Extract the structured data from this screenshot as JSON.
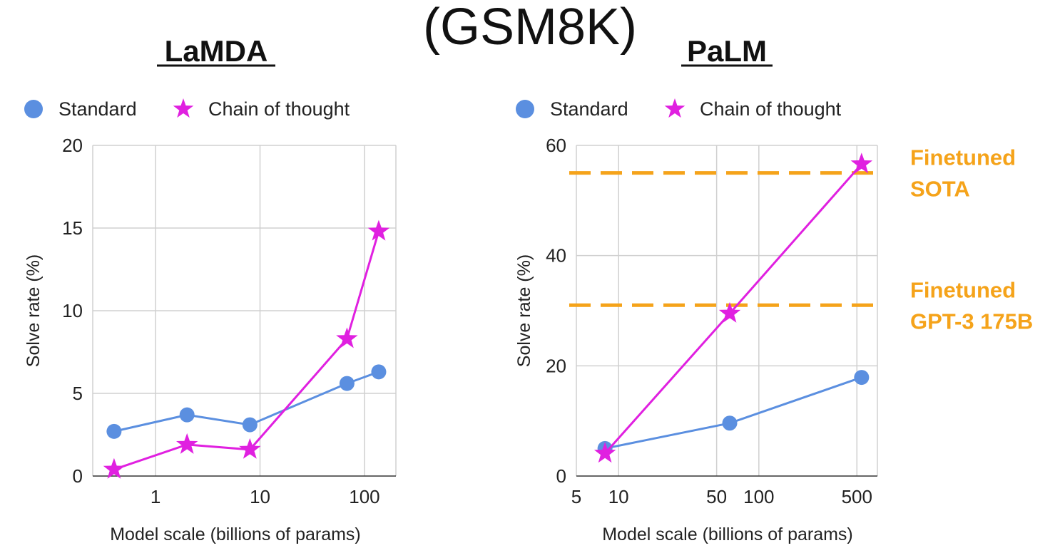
{
  "figure": {
    "title": "(GSM8K)"
  },
  "colors": {
    "standard": "#5b8fe0",
    "cot": "#e020e0",
    "ref": "#f5a31a"
  },
  "chart_data": [
    {
      "type": "line",
      "title": "LaMDA",
      "xscale": "log",
      "xlabel": "Model scale (billions of params)",
      "ylabel": "Solve rate (%)",
      "xlim": [
        0.25,
        200
      ],
      "ylim": [
        0,
        20
      ],
      "xticks": [
        1,
        10,
        100
      ],
      "xtick_labels": [
        "1",
        "10",
        "100"
      ],
      "yticks": [
        0,
        5,
        10,
        15,
        20
      ],
      "ytick_labels": [
        "0",
        "5",
        "10",
        "15",
        "20"
      ],
      "x_grid": [
        0.25,
        1,
        10,
        100,
        200
      ],
      "legend": "top-left",
      "series": [
        {
          "name": "Standard",
          "marker": "circle",
          "x": [
            0.4,
            2,
            8,
            68,
            137
          ],
          "y": [
            2.7,
            3.7,
            3.1,
            5.6,
            6.3
          ]
        },
        {
          "name": "Chain of thought",
          "marker": "star",
          "x": [
            0.4,
            2,
            8,
            68,
            137
          ],
          "y": [
            0.4,
            1.9,
            1.6,
            8.3,
            14.8
          ]
        }
      ]
    },
    {
      "type": "line",
      "title": "PaLM",
      "xscale": "log",
      "xlabel": "Model scale (billions of params)",
      "ylabel": "Solve rate (%)",
      "xlim": [
        5,
        700
      ],
      "ylim": [
        0,
        60
      ],
      "xticks": [
        5,
        10,
        50,
        100,
        500
      ],
      "xtick_labels": [
        "5",
        "10",
        "50",
        "100",
        "500"
      ],
      "yticks": [
        0,
        20,
        40,
        60
      ],
      "ytick_labels": [
        "0",
        "20",
        "40",
        "60"
      ],
      "x_grid": [
        5,
        10,
        50,
        100,
        500,
        700
      ],
      "legend": "top-left",
      "series": [
        {
          "name": "Standard",
          "marker": "circle",
          "x": [
            8,
            62,
            540
          ],
          "y": [
            5,
            9.6,
            17.9
          ]
        },
        {
          "name": "Chain of thought",
          "marker": "star",
          "x": [
            8,
            62,
            540
          ],
          "y": [
            4.1,
            29.5,
            56.6
          ]
        }
      ],
      "reference_lines": [
        {
          "label_lines": [
            "Finetuned",
            "SOTA"
          ],
          "y": 55
        },
        {
          "label_lines": [
            "Finetuned",
            "GPT-3 175B"
          ],
          "y": 31
        }
      ]
    }
  ]
}
